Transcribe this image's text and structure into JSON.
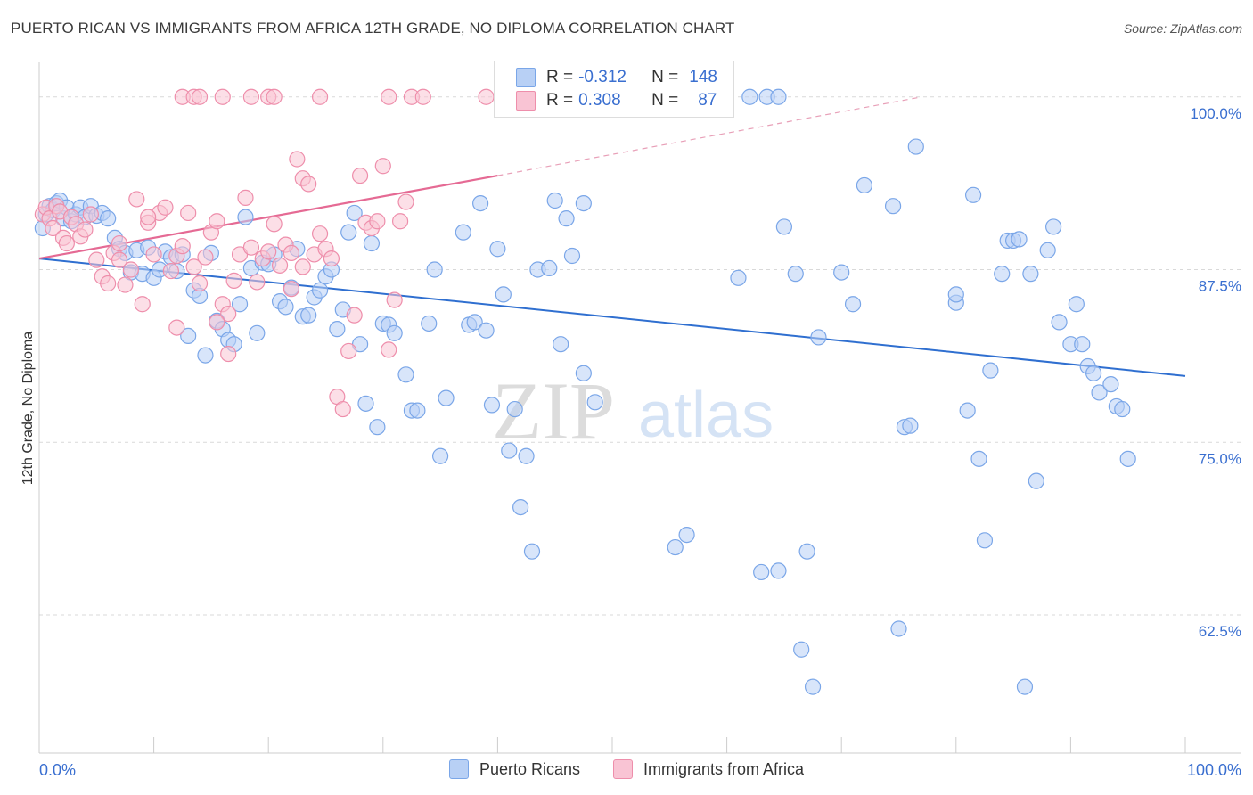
{
  "title": "PUERTO RICAN VS IMMIGRANTS FROM AFRICA 12TH GRADE, NO DIPLOMA CORRELATION CHART",
  "source": "Source: ZipAtlas.com",
  "watermark": {
    "zip": "ZIP",
    "atlas": "atlas"
  },
  "inset_legend": {
    "r_label": "R =",
    "n_label": "N =",
    "rows": [
      {
        "r": "-0.312",
        "n": "148",
        "color": "#b8d0f5"
      },
      {
        "r": "0.308",
        "n": "87",
        "color": "#f9c4d4"
      }
    ]
  },
  "legend": [
    {
      "label": "Puerto Ricans",
      "color": "#b8d0f5"
    },
    {
      "label": "Immigrants from Africa",
      "color": "#f9c4d4"
    }
  ],
  "chart_data": {
    "type": "scatter",
    "title": "PUERTO RICAN VS IMMIGRANTS FROM AFRICA 12TH GRADE, NO DIPLOMA CORRELATION CHART",
    "xlabel": "",
    "ylabel": "12th Grade, No Diploma",
    "xlim": [
      0,
      100
    ],
    "ylim": [
      52.5,
      102.5
    ],
    "x_tick_labels": [
      "0.0%",
      "100.0%"
    ],
    "y_ticks": [
      100.0,
      87.5,
      75.0,
      62.5
    ],
    "y_tick_labels": [
      "100.0%",
      "87.5%",
      "75.0%",
      "62.5%"
    ],
    "grid": true,
    "legend_position": "bottom",
    "series": [
      {
        "name": "Puerto Ricans",
        "color": "#7aa6e8",
        "fill": "#b8d0f5",
        "trend": {
          "x": [
            0,
            100
          ],
          "y": [
            88.3,
            79.8
          ],
          "style": "solid"
        },
        "points": [
          [
            0.3,
            90.5
          ],
          [
            0.6,
            91.5
          ],
          [
            0.9,
            92.1
          ],
          [
            1.2,
            91.8
          ],
          [
            1.5,
            92.3
          ],
          [
            1.8,
            92.5
          ],
          [
            2.1,
            91.2
          ],
          [
            2.4,
            92.0
          ],
          [
            2.8,
            91.0
          ],
          [
            3.2,
            91.5
          ],
          [
            3.6,
            92.0
          ],
          [
            4.0,
            91.3
          ],
          [
            4.5,
            92.1
          ],
          [
            5.0,
            91.4
          ],
          [
            5.5,
            91.6
          ],
          [
            6.0,
            91.2
          ],
          [
            6.6,
            89.8
          ],
          [
            7.0,
            89.0
          ],
          [
            7.5,
            88.7
          ],
          [
            8.0,
            87.3
          ],
          [
            8.5,
            88.9
          ],
          [
            9.0,
            87.2
          ],
          [
            9.5,
            89.1
          ],
          [
            10.0,
            86.9
          ],
          [
            10.5,
            87.5
          ],
          [
            11.0,
            88.8
          ],
          [
            11.5,
            88.4
          ],
          [
            12.0,
            87.4
          ],
          [
            12.5,
            88.6
          ],
          [
            13.0,
            82.7
          ],
          [
            13.5,
            86.0
          ],
          [
            14.0,
            85.6
          ],
          [
            14.5,
            81.3
          ],
          [
            15.0,
            88.7
          ],
          [
            15.5,
            83.8
          ],
          [
            16.0,
            83.2
          ],
          [
            16.5,
            82.4
          ],
          [
            17.0,
            82.1
          ],
          [
            17.5,
            85.0
          ],
          [
            18.0,
            91.3
          ],
          [
            18.5,
            87.6
          ],
          [
            19.0,
            82.9
          ],
          [
            19.5,
            88.0
          ],
          [
            20.0,
            87.9
          ],
          [
            20.5,
            88.6
          ],
          [
            21.0,
            85.2
          ],
          [
            21.5,
            84.8
          ],
          [
            22.0,
            86.2
          ],
          [
            22.5,
            89.0
          ],
          [
            23.0,
            84.1
          ],
          [
            23.5,
            84.2
          ],
          [
            24.0,
            85.5
          ],
          [
            24.5,
            86.0
          ],
          [
            25.0,
            87.0
          ],
          [
            25.5,
            87.5
          ],
          [
            26.0,
            83.2
          ],
          [
            26.5,
            84.6
          ],
          [
            27.0,
            90.2
          ],
          [
            27.5,
            91.6
          ],
          [
            28.0,
            82.1
          ],
          [
            28.5,
            77.8
          ],
          [
            29.0,
            89.4
          ],
          [
            29.5,
            76.1
          ],
          [
            30.0,
            83.6
          ],
          [
            30.5,
            83.5
          ],
          [
            31.0,
            82.9
          ],
          [
            32.0,
            79.9
          ],
          [
            32.5,
            77.3
          ],
          [
            33.0,
            77.3
          ],
          [
            34.0,
            83.6
          ],
          [
            34.5,
            87.5
          ],
          [
            35.0,
            74.0
          ],
          [
            35.5,
            78.2
          ],
          [
            37.0,
            90.2
          ],
          [
            37.5,
            83.5
          ],
          [
            38.0,
            83.7
          ],
          [
            38.5,
            92.3
          ],
          [
            39.0,
            83.1
          ],
          [
            39.5,
            77.7
          ],
          [
            40.0,
            89.0
          ],
          [
            40.5,
            85.7
          ],
          [
            41.0,
            74.4
          ],
          [
            41.5,
            77.4
          ],
          [
            42.0,
            70.3
          ],
          [
            42.5,
            74.0
          ],
          [
            43.0,
            67.1
          ],
          [
            43.5,
            87.5
          ],
          [
            44.5,
            87.6
          ],
          [
            45.0,
            92.5
          ],
          [
            45.5,
            82.1
          ],
          [
            46.0,
            91.2
          ],
          [
            46.5,
            88.5
          ],
          [
            47.5,
            80.0
          ],
          [
            47.5,
            92.3
          ],
          [
            48.5,
            77.9
          ],
          [
            55.5,
            67.4
          ],
          [
            56.5,
            68.3
          ],
          [
            58.5,
            100.0
          ],
          [
            61.0,
            86.9
          ],
          [
            62.0,
            100.0
          ],
          [
            63.0,
            65.6
          ],
          [
            63.5,
            100.0
          ],
          [
            64.5,
            65.7
          ],
          [
            64.5,
            100.0
          ],
          [
            65.0,
            90.6
          ],
          [
            66.0,
            87.2
          ],
          [
            66.5,
            60.0
          ],
          [
            67.0,
            67.1
          ],
          [
            68.0,
            82.6
          ],
          [
            70.0,
            87.3
          ],
          [
            71.0,
            85.0
          ],
          [
            72.0,
            93.6
          ],
          [
            74.5,
            92.1
          ],
          [
            75.0,
            61.5
          ],
          [
            75.5,
            76.1
          ],
          [
            76.0,
            76.2
          ],
          [
            76.5,
            96.4
          ],
          [
            80.0,
            85.1
          ],
          [
            80.0,
            85.7
          ],
          [
            81.0,
            77.3
          ],
          [
            81.5,
            92.9
          ],
          [
            82.0,
            73.8
          ],
          [
            82.5,
            67.9
          ],
          [
            83.0,
            80.2
          ],
          [
            84.0,
            87.2
          ],
          [
            84.5,
            89.6
          ],
          [
            85.0,
            89.6
          ],
          [
            85.5,
            89.7
          ],
          [
            86.0,
            57.3
          ],
          [
            86.5,
            87.2
          ],
          [
            87.0,
            72.2
          ],
          [
            88.0,
            88.9
          ],
          [
            88.5,
            90.6
          ],
          [
            89.0,
            83.7
          ],
          [
            90.0,
            82.1
          ],
          [
            90.5,
            85.0
          ],
          [
            91.0,
            82.1
          ],
          [
            91.5,
            80.5
          ],
          [
            92.0,
            80.0
          ],
          [
            92.5,
            78.6
          ],
          [
            93.5,
            79.2
          ],
          [
            94.0,
            77.6
          ],
          [
            94.5,
            77.4
          ],
          [
            95.0,
            73.8
          ],
          [
            67.5,
            57.3
          ],
          [
            50.0,
            100.0
          ],
          [
            52.0,
            100.0
          ],
          [
            54.0,
            100.0
          ]
        ]
      },
      {
        "name": "Immigrants from Africa",
        "color": "#ee8eab",
        "fill": "#f9c4d4",
        "trend": {
          "x": [
            0,
            40
          ],
          "y": [
            88.3,
            94.3
          ],
          "style": "solid",
          "extended_to": [
            77,
            100
          ]
        },
        "points": [
          [
            0.3,
            91.5
          ],
          [
            0.6,
            92.0
          ],
          [
            0.9,
            91.2
          ],
          [
            1.2,
            90.5
          ],
          [
            1.5,
            92.1
          ],
          [
            1.8,
            91.7
          ],
          [
            2.1,
            89.8
          ],
          [
            2.4,
            89.4
          ],
          [
            2.8,
            91.3
          ],
          [
            3.2,
            90.8
          ],
          [
            3.6,
            89.9
          ],
          [
            4.0,
            90.4
          ],
          [
            4.5,
            91.5
          ],
          [
            5.0,
            88.2
          ],
          [
            5.5,
            87.0
          ],
          [
            6.0,
            86.5
          ],
          [
            6.5,
            88.7
          ],
          [
            7.0,
            88.2
          ],
          [
            7.5,
            86.4
          ],
          [
            8.0,
            87.5
          ],
          [
            8.5,
            92.6
          ],
          [
            9.0,
            85.0
          ],
          [
            9.5,
            90.9
          ],
          [
            10.0,
            88.6
          ],
          [
            10.5,
            91.6
          ],
          [
            11.0,
            92.0
          ],
          [
            11.5,
            87.4
          ],
          [
            12.0,
            88.5
          ],
          [
            12.5,
            89.2
          ],
          [
            13.0,
            91.6
          ],
          [
            13.5,
            87.7
          ],
          [
            14.0,
            86.5
          ],
          [
            14.5,
            88.4
          ],
          [
            15.0,
            90.2
          ],
          [
            15.5,
            91.0
          ],
          [
            16.0,
            85.0
          ],
          [
            16.5,
            84.3
          ],
          [
            17.0,
            86.7
          ],
          [
            17.5,
            88.6
          ],
          [
            18.0,
            92.7
          ],
          [
            18.5,
            89.1
          ],
          [
            19.0,
            86.6
          ],
          [
            19.5,
            88.3
          ],
          [
            20.0,
            88.8
          ],
          [
            20.5,
            90.8
          ],
          [
            21.0,
            87.8
          ],
          [
            21.5,
            89.3
          ],
          [
            22.0,
            86.1
          ],
          [
            22.5,
            95.5
          ],
          [
            23.0,
            94.1
          ],
          [
            23.5,
            93.7
          ],
          [
            24.0,
            88.6
          ],
          [
            24.5,
            90.1
          ],
          [
            25.0,
            89.0
          ],
          [
            25.5,
            88.3
          ],
          [
            26.0,
            78.3
          ],
          [
            26.5,
            77.4
          ],
          [
            27.0,
            81.6
          ],
          [
            27.5,
            84.2
          ],
          [
            28.0,
            94.3
          ],
          [
            28.5,
            90.9
          ],
          [
            29.0,
            90.5
          ],
          [
            29.5,
            91.0
          ],
          [
            30.0,
            95.0
          ],
          [
            30.5,
            81.7
          ],
          [
            31.0,
            85.3
          ],
          [
            31.5,
            91.0
          ],
          [
            32.0,
            92.4
          ],
          [
            12.5,
            100.0
          ],
          [
            13.5,
            100.0
          ],
          [
            14.0,
            100.0
          ],
          [
            16.0,
            100.0
          ],
          [
            18.5,
            100.0
          ],
          [
            20.0,
            100.0
          ],
          [
            20.5,
            100.0
          ],
          [
            24.5,
            100.0
          ],
          [
            30.5,
            100.0
          ],
          [
            32.5,
            100.0
          ],
          [
            33.5,
            100.0
          ],
          [
            39.0,
            100.0
          ],
          [
            22.0,
            88.7
          ],
          [
            23.0,
            87.7
          ],
          [
            16.5,
            81.4
          ],
          [
            15.5,
            83.7
          ],
          [
            12.0,
            83.3
          ],
          [
            7.0,
            89.4
          ],
          [
            9.5,
            91.3
          ]
        ]
      }
    ]
  }
}
